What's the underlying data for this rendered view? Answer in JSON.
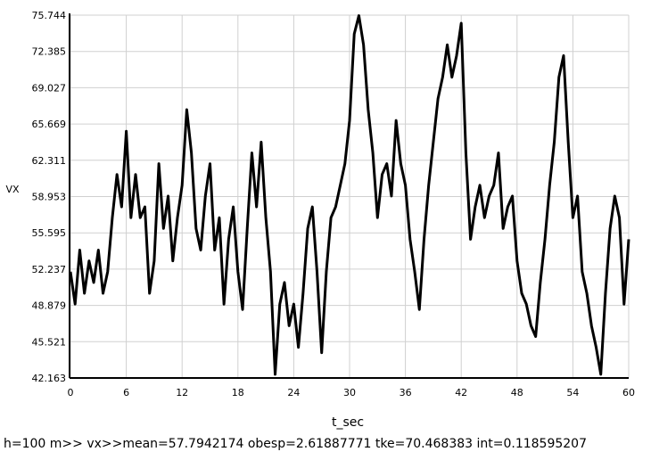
{
  "chart_data": {
    "type": "line",
    "y_label": "VX",
    "x_label": "t_sec",
    "caption": "h=100 m>> vx>>mean=57.7942174   obesp=2.61887771 tke=70.468383 int=0.118595207",
    "x": [
      0,
      0.5,
      1,
      1.5,
      2,
      2.5,
      3,
      3.5,
      4,
      4.5,
      5,
      5.5,
      6,
      6.5,
      7,
      7.5,
      8,
      8.5,
      9,
      9.5,
      10,
      10.5,
      11,
      11.5,
      12,
      12.5,
      13,
      13.5,
      14,
      14.5,
      15,
      15.5,
      16,
      16.5,
      17,
      17.5,
      18,
      18.5,
      19,
      19.5,
      20,
      20.5,
      21,
      21.5,
      22,
      22.5,
      23,
      23.5,
      24,
      24.5,
      25,
      25.5,
      26,
      26.5,
      27,
      27.5,
      28,
      28.5,
      29,
      29.5,
      30,
      30.5,
      31,
      31.5,
      32,
      32.5,
      33,
      33.5,
      34,
      34.5,
      35,
      35.5,
      36,
      36.5,
      37,
      37.5,
      38,
      38.5,
      39,
      39.5,
      40,
      40.5,
      41,
      41.5,
      42,
      42.5,
      43,
      43.5,
      44,
      44.5,
      45,
      45.5,
      46,
      46.5,
      47,
      47.5,
      48,
      48.5,
      49,
      49.5,
      50,
      50.5,
      51,
      51.5,
      52,
      52.5,
      53,
      53.5,
      54,
      54.5,
      55,
      55.5,
      56,
      56.5,
      57,
      57.5,
      58,
      58.5,
      59,
      59.5,
      60
    ],
    "series": [
      {
        "color": "#000000",
        "values": [
          52,
          49,
          54,
          50,
          53,
          51,
          54,
          50,
          52,
          57,
          61,
          58,
          65,
          57,
          61,
          57,
          58,
          50,
          53,
          62,
          56,
          59,
          53,
          57,
          60,
          67,
          63,
          56,
          54,
          59,
          62,
          54,
          57,
          49,
          55,
          58,
          52,
          48.5,
          56,
          63,
          58,
          64,
          57,
          52,
          42.5,
          49,
          51,
          47,
          49,
          45,
          50,
          56,
          58,
          52,
          44.5,
          52,
          57,
          58,
          60,
          62,
          66,
          74,
          75.7,
          73,
          67,
          63,
          57,
          61,
          62,
          59,
          66,
          62,
          60,
          55,
          52,
          48.5,
          55,
          60,
          64,
          68,
          70,
          73,
          70,
          72,
          75,
          63,
          55,
          58,
          60,
          57,
          59,
          60,
          63,
          56,
          58,
          59,
          53,
          50,
          49,
          47,
          46,
          51,
          55,
          60,
          64,
          70,
          72,
          64,
          57,
          59,
          52,
          50,
          47,
          45,
          42.5,
          50,
          56,
          59,
          57,
          49,
          55
        ]
      }
    ],
    "xlim": [
      0,
      60
    ],
    "xticks": [
      0,
      6,
      12,
      18,
      24,
      30,
      36,
      42,
      48,
      54,
      60
    ],
    "ylim": [
      42.163,
      75.744
    ],
    "yticks": [
      42.163,
      45.521,
      48.879,
      52.237,
      55.595,
      58.953,
      62.311,
      65.669,
      69.027,
      72.385,
      75.744
    ],
    "grid": true
  }
}
